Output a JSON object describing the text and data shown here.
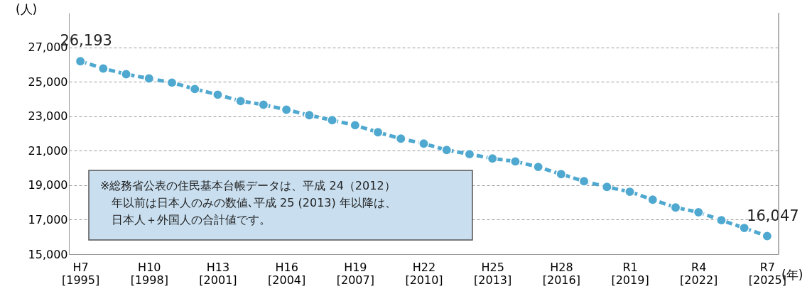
{
  "chart_data": {
    "type": "line",
    "ylabel": "(人)",
    "xlabel": "(年)",
    "categories": [
      "H7\n[1995]",
      null,
      null,
      "H10\n[1998]",
      null,
      null,
      "H13\n[2001]",
      null,
      null,
      "H16\n[2004]",
      null,
      null,
      "H19\n[2007]",
      null,
      null,
      "H22\n[2010]",
      null,
      null,
      "H25\n[2013]",
      null,
      null,
      "H28\n[2016]",
      null,
      null,
      "R1\n[2019]",
      null,
      null,
      "R4\n[2022]",
      null,
      null,
      "R7\n[2025]"
    ],
    "series": [
      {
        "color": "#4fa8cf",
        "values": [
          26193,
          25770,
          25440,
          25190,
          24950,
          24580,
          24250,
          23880,
          23670,
          23380,
          23060,
          22770,
          22480,
          22070,
          21700,
          21410,
          21040,
          20800,
          20550,
          20380,
          20060,
          19640,
          19230,
          18900,
          18620,
          18160,
          17710,
          17430,
          16970,
          16520,
          16047
        ],
        "value_labels": [
          "26,193",
          null,
          null,
          null,
          null,
          null,
          null,
          null,
          null,
          null,
          null,
          null,
          null,
          null,
          null,
          null,
          null,
          null,
          null,
          null,
          null,
          null,
          null,
          null,
          null,
          null,
          null,
          null,
          null,
          null,
          "16,047"
        ]
      }
    ],
    "ylim": [
      15000,
      29000
    ],
    "yticks": [
      {
        "value": 15000,
        "label": "15,000"
      },
      {
        "value": 17000,
        "label": "17,000"
      },
      {
        "value": 19000,
        "label": "19,000"
      },
      {
        "value": 21000,
        "label": "21,000"
      },
      {
        "value": 23000,
        "label": "23,000"
      },
      {
        "value": 25000,
        "label": "25,000"
      },
      {
        "value": 27000,
        "label": "27,000"
      }
    ],
    "grid": "y",
    "marker": "circle",
    "line_style": "dashed",
    "annotations": [
      "※総務省公表の住民基本台帳データは、平成 24（2012）年以前は日本人のみの数値､平成 25 (2013) 年以降は、日本人＋外国人の合計値です。"
    ]
  }
}
